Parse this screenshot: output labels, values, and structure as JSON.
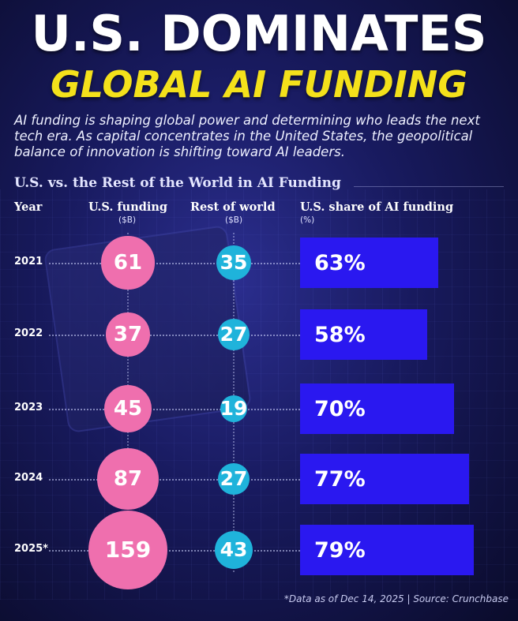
{
  "header": {
    "title_line1": "U.S. DOMINATES",
    "title_line2": "GLOBAL AI FUNDING",
    "subtitle": "AI funding is shaping global power and determining who leads the next tech era. As capital concentrates in the United States, the geopolitical balance of innovation is shifting toward AI leaders."
  },
  "chart_data": {
    "type": "table",
    "title": "U.S. vs. the Rest of the World in AI Funding",
    "columns": [
      {
        "label": "Year",
        "unit": ""
      },
      {
        "label": "U.S. funding",
        "unit": "($B)"
      },
      {
        "label": "Rest of world",
        "unit": "($B)"
      },
      {
        "label": "U.S. share of AI funding",
        "unit": "(%)"
      }
    ],
    "rows": [
      {
        "year": "2021",
        "us": 61,
        "rest": 35,
        "share": 63,
        "share_label": "63%"
      },
      {
        "year": "2022",
        "us": 37,
        "rest": 27,
        "share": 58,
        "share_label": "58%"
      },
      {
        "year": "2023",
        "us": 45,
        "rest": 19,
        "share": 70,
        "share_label": "70%"
      },
      {
        "year": "2024",
        "us": 87,
        "rest": 27,
        "share": 77,
        "share_label": "77%"
      },
      {
        "year": "2025*",
        "us": 159,
        "rest": 43,
        "share": 79,
        "share_label": "79%"
      }
    ],
    "colors": {
      "us_bubble": "#ef6fae",
      "rest_bubble": "#1fb3db",
      "share_bar": "#2a18f0",
      "title_accent": "#f4e11b"
    }
  },
  "footnote": "*Data as of Dec 14, 2025 | Source: Crunchbase"
}
